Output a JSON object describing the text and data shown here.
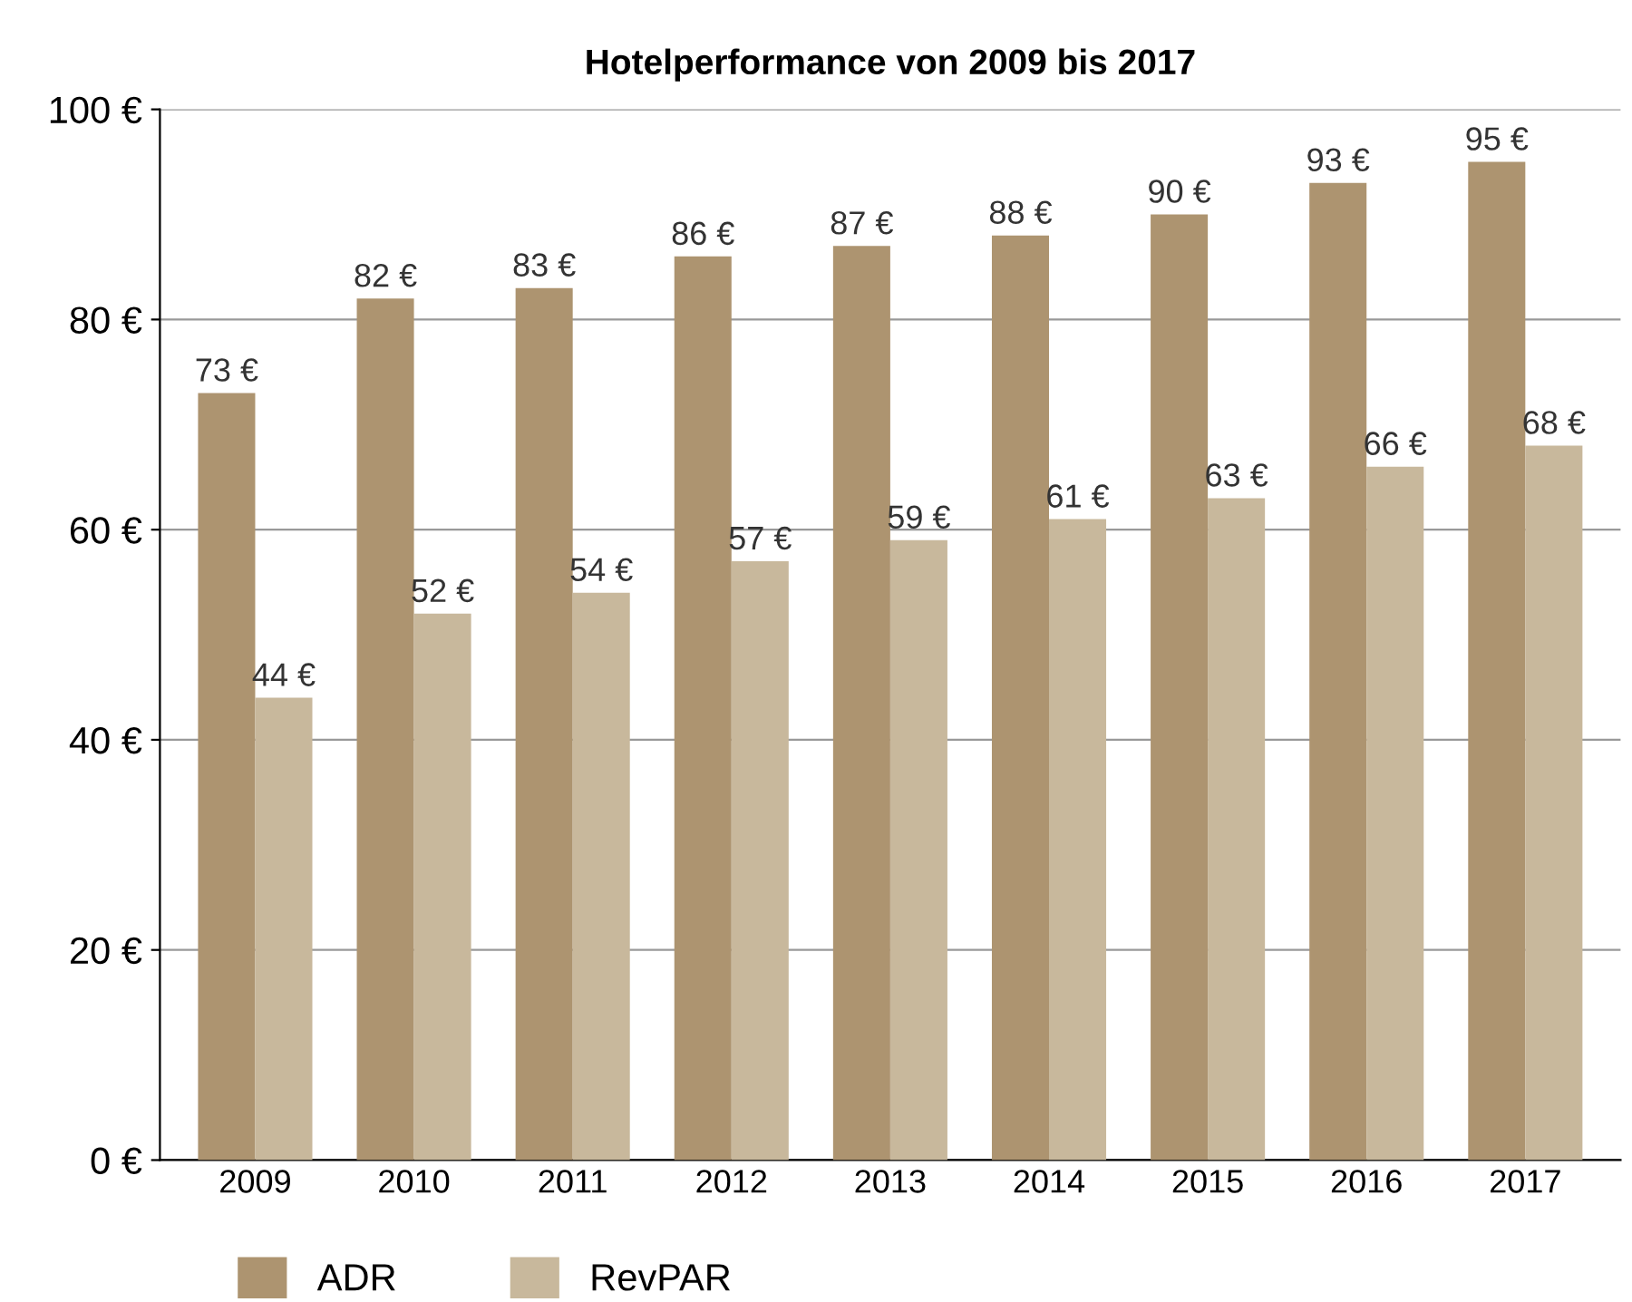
{
  "chart_data": {
    "type": "bar",
    "title": "Hotelperformance von 2009 bis 2017",
    "categories": [
      "2009",
      "2010",
      "2011",
      "2012",
      "2013",
      "2014",
      "2015",
      "2016",
      "2017"
    ],
    "series": [
      {
        "name": "ADR",
        "color": "#ad9470",
        "values": [
          73,
          82,
          83,
          86,
          87,
          88,
          90,
          93,
          95
        ],
        "value_labels": [
          "73 €",
          "82 €",
          "83 €",
          "86 €",
          "87 €",
          "88 €",
          "90 €",
          "93 €",
          "95 €"
        ]
      },
      {
        "name": "RevPAR",
        "color": "#c8b89c",
        "values": [
          44,
          52,
          54,
          57,
          59,
          61,
          63,
          66,
          68
        ],
        "value_labels": [
          "44 €",
          "52 €",
          "54 €",
          "57 €",
          "59 €",
          "61 €",
          "63 €",
          "66 €",
          "68 €"
        ]
      }
    ],
    "ylim": [
      0,
      100
    ],
    "yticks": [
      {
        "value": 0,
        "label": "0 €"
      },
      {
        "value": 20,
        "label": "20 €"
      },
      {
        "value": 40,
        "label": "40 €"
      },
      {
        "value": 60,
        "label": "60 €"
      },
      {
        "value": 80,
        "label": "80 €"
      },
      {
        "value": 100,
        "label": "100 €"
      }
    ],
    "grid": "y",
    "legend": "bottom left"
  }
}
